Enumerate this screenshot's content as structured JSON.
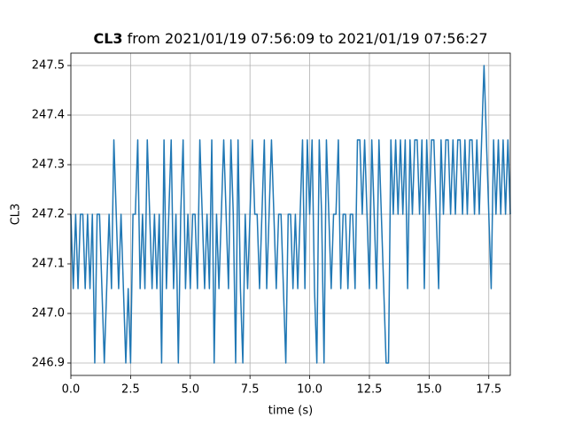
{
  "chart_data": {
    "type": "line",
    "title": {
      "name": "CL3",
      "text": "from 2021/01/19 07:56:09 to 2021/01/19 07:56:27"
    },
    "xlabel": "time (s)",
    "ylabel": "CL3",
    "grid": true,
    "xlim": [
      0,
      18.4
    ],
    "ylim": [
      246.875,
      247.525
    ],
    "xticks": [
      {
        "value": 0,
        "label": "0.0"
      },
      2.5,
      {
        "value": 5,
        "label": "5.0"
      },
      7.5,
      {
        "value": 10,
        "label": "10.0"
      },
      12.5,
      {
        "value": 15,
        "label": "15.0"
      },
      17.5
    ],
    "yticks": [
      246.9,
      {
        "value": 247,
        "label": "247.0"
      },
      247.1,
      247.2,
      247.3,
      247.4,
      247.5
    ],
    "x": [
      0,
      0.1,
      0.2,
      0.3,
      0.4,
      0.5,
      0.6,
      0.7,
      0.8,
      0.9,
      1,
      1.1,
      1.2,
      1.3,
      1.4,
      1.5,
      1.6,
      1.7,
      1.8,
      1.9,
      2,
      2.1,
      2.2,
      2.3,
      2.4,
      2.5,
      2.6,
      2.7,
      2.8,
      2.9,
      3,
      3.1,
      3.2,
      3.3,
      3.4,
      3.5,
      3.6,
      3.7,
      3.8,
      3.9,
      4,
      4.1,
      4.2,
      4.3,
      4.4,
      4.5,
      4.6,
      4.7,
      4.8,
      4.9,
      5,
      5.1,
      5.2,
      5.3,
      5.4,
      5.5,
      5.6,
      5.7,
      5.8,
      5.9,
      6,
      6.1,
      6.2,
      6.3,
      6.4,
      6.5,
      6.6,
      6.7,
      6.8,
      6.9,
      7,
      7.1,
      7.2,
      7.3,
      7.4,
      7.5,
      7.6,
      7.7,
      7.8,
      7.9,
      8,
      8.1,
      8.2,
      8.3,
      8.4,
      8.5,
      8.6,
      8.7,
      8.8,
      8.9,
      9,
      9.1,
      9.2,
      9.3,
      9.4,
      9.5,
      9.6,
      9.7,
      9.8,
      9.9,
      10,
      10.1,
      10.2,
      10.3,
      10.4,
      10.5,
      10.6,
      10.7,
      10.8,
      10.9,
      11,
      11.1,
      11.2,
      11.3,
      11.4,
      11.5,
      11.6,
      11.7,
      11.8,
      11.9,
      12,
      12.1,
      12.2,
      12.3,
      12.4,
      12.5,
      12.6,
      12.7,
      12.8,
      12.9,
      13,
      13.1,
      13.2,
      13.3,
      13.4,
      13.5,
      13.6,
      13.7,
      13.8,
      13.9,
      14,
      14.1,
      14.2,
      14.3,
      14.4,
      14.5,
      14.6,
      14.7,
      14.8,
      14.9,
      15,
      15.1,
      15.2,
      15.3,
      15.4,
      15.5,
      15.6,
      15.7,
      15.8,
      15.9,
      16,
      16.1,
      16.2,
      16.3,
      16.4,
      16.5,
      16.6,
      16.7,
      16.8,
      16.9,
      17,
      17.1,
      17.2,
      17.3,
      17.4,
      17.5,
      17.6,
      17.7,
      17.8,
      17.9,
      18,
      18.1,
      18.2,
      18.3,
      18.4
    ],
    "series": [
      {
        "color": "#1f77b4",
        "values": [
          247.2,
          247.05,
          247.2,
          247.05,
          247.2,
          247.2,
          247.05,
          247.2,
          247.05,
          247.2,
          246.9,
          247.2,
          247.2,
          247.05,
          246.9,
          247.05,
          247.2,
          247.05,
          247.35,
          247.2,
          247.05,
          247.2,
          247.05,
          246.9,
          247.05,
          246.9,
          247.2,
          247.2,
          247.35,
          247.05,
          247.2,
          247.05,
          247.35,
          247.2,
          247.05,
          247.2,
          247.05,
          247.2,
          246.9,
          247.35,
          247.05,
          247.2,
          247.35,
          247.05,
          247.2,
          246.9,
          247.2,
          247.35,
          247.05,
          247.2,
          247.05,
          247.2,
          247.2,
          247.05,
          247.35,
          247.2,
          247.05,
          247.2,
          247.05,
          247.35,
          246.9,
          247.2,
          247.05,
          247.2,
          247.35,
          247.2,
          247.05,
          247.35,
          247.2,
          246.9,
          247.35,
          247.05,
          246.9,
          247.2,
          247.05,
          247.2,
          247.35,
          247.2,
          247.2,
          247.05,
          247.2,
          247.35,
          247.05,
          247.2,
          247.35,
          247.2,
          247.05,
          247.2,
          247.2,
          247.05,
          246.9,
          247.2,
          247.2,
          247.05,
          247.2,
          247.05,
          247.2,
          247.35,
          247.05,
          247.35,
          247.2,
          247.35,
          247.05,
          246.9,
          247.35,
          247.2,
          246.9,
          247.35,
          247.2,
          247.05,
          247.2,
          247.2,
          247.35,
          247.05,
          247.2,
          247.2,
          247.05,
          247.2,
          247.2,
          247.05,
          247.35,
          247.35,
          247.2,
          247.35,
          247.2,
          247.05,
          247.35,
          247.2,
          247.05,
          247.35,
          247.2,
          247.05,
          246.9,
          246.9,
          247.35,
          247.2,
          247.35,
          247.2,
          247.35,
          247.2,
          247.35,
          247.05,
          247.35,
          247.2,
          247.35,
          247.35,
          247.2,
          247.35,
          247.05,
          247.35,
          247.2,
          247.35,
          247.35,
          247.2,
          247.05,
          247.35,
          247.2,
          247.35,
          247.35,
          247.2,
          247.35,
          247.2,
          247.35,
          247.35,
          247.2,
          247.35,
          247.2,
          247.35,
          247.35,
          247.2,
          247.35,
          247.2,
          247.35,
          247.5,
          247.35,
          247.2,
          247.05,
          247.35,
          247.2,
          247.35,
          247.2,
          247.35,
          247.2,
          247.35,
          247.2
        ]
      }
    ]
  }
}
